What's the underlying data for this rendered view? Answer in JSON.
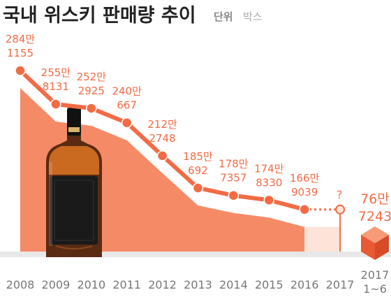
{
  "header": {
    "title": "국내 위스키 판매량 추이",
    "unit_label": "단위",
    "unit_value": "박스"
  },
  "chart_data": {
    "type": "line",
    "title": "국내 위스키 판매량 추이",
    "unit": "박스",
    "categories": [
      "2008",
      "2009",
      "2010",
      "2011",
      "2012",
      "2013",
      "2014",
      "2015",
      "2016",
      "2017"
    ],
    "series": [
      {
        "values": [
          2841155,
          2558131,
          2522925,
          2400667,
          2122748,
          1850692,
          1787357,
          1748330,
          1669039,
          null
        ],
        "labels": [
          [
            "284만",
            "1155"
          ],
          [
            "255만",
            "8131"
          ],
          [
            "252만",
            "2925"
          ],
          [
            "240만",
            "667"
          ],
          [
            "212만",
            "2748"
          ],
          [
            "185만",
            "692"
          ],
          [
            "178만",
            "7357"
          ],
          [
            "174만",
            "8330"
          ],
          [
            "166만",
            "9039"
          ],
          [
            "?",
            ""
          ]
        ]
      }
    ],
    "partial_period": {
      "category_line1": "2017",
      "category_line2": "1~6",
      "value": 767243,
      "label_line1": "76만",
      "label_line2": "7243"
    },
    "colors": {
      "line": "#f26b45",
      "area": "#f58a67",
      "label": "#f26b45",
      "axis_text": "#777777",
      "baseline": "#e8e8e8",
      "cube": "#f26b45"
    },
    "icons": [
      "whisky-bottle-icon",
      "box-cube-icon"
    ]
  }
}
